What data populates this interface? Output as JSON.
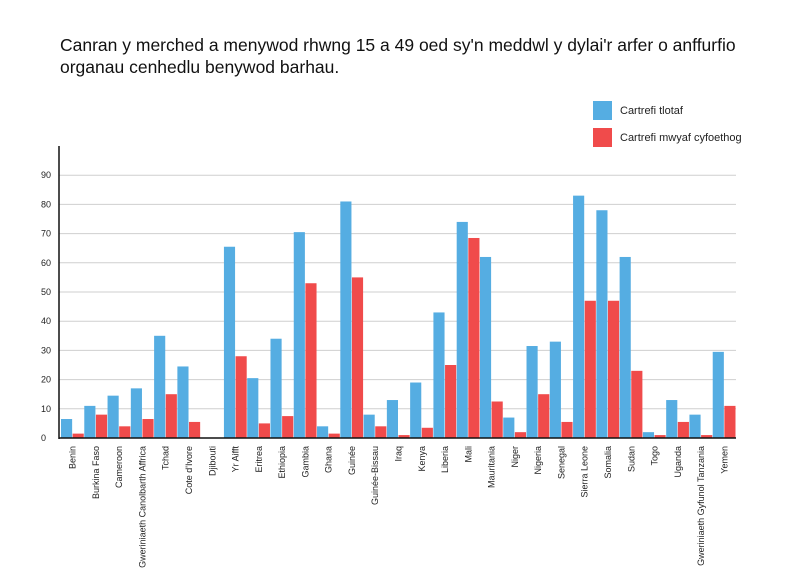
{
  "chart_data": {
    "type": "bar",
    "title": "Canran y merched a menywod rhwng 15 a 49 oed sy'n meddwl y dylai'r arfer o anffurfio organau cenhedlu benywod barhau.",
    "xlabel": "",
    "ylabel": "",
    "ylim": [
      0,
      90
    ],
    "yticks": [
      0,
      10,
      20,
      30,
      40,
      50,
      60,
      70,
      80,
      90
    ],
    "grid": true,
    "legend_position": "top-right",
    "categories": [
      "Benin",
      "Burkina Faso",
      "Cameroon",
      "Gweriniaeth Canolbarth Affrica",
      "Tchad",
      "Cote d'Ivore",
      "Djibouti",
      "Yr Aifft",
      "Eritrea",
      "Ethiopia",
      "Gambia",
      "Ghana",
      "Guinée",
      "Guinée-Bissau",
      "Iraq",
      "Kenya",
      "Liberia",
      "Mali",
      "Mauritania",
      "Niger",
      "Nigeria",
      "Senegal",
      "Sierra Leone",
      "Somalia",
      "Sudan",
      "Togo",
      "Uganda",
      "Gweriniaeth Gyfunol Tanzania",
      "Yemen"
    ],
    "series": [
      {
        "name": "Cartrefi tlotaf",
        "color": "#55ade2",
        "values": [
          6.5,
          11,
          14.5,
          17,
          35,
          24.5,
          0,
          65.5,
          20.5,
          34,
          70.5,
          4,
          81,
          8,
          13,
          19,
          43,
          74,
          62,
          7,
          31.5,
          33,
          83,
          78,
          62,
          2,
          13,
          8,
          29.5
        ]
      },
      {
        "name": "Cartrefi mwyaf cyfoethog",
        "color": "#f04b4b",
        "values": [
          1.5,
          8,
          4,
          6.5,
          15,
          5.5,
          0,
          28,
          5,
          7.5,
          53,
          1.5,
          55,
          4,
          1,
          3.5,
          25,
          68.5,
          12.5,
          2,
          15,
          5.5,
          47,
          47,
          23,
          1,
          5.5,
          1,
          11
        ]
      }
    ]
  }
}
